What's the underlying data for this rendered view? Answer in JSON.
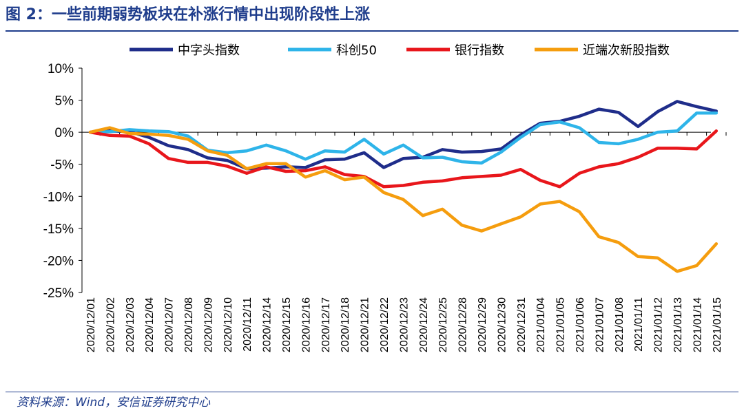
{
  "figure": {
    "title": "图 2：一些前期弱势板块在补涨行情中出现阶段性上涨",
    "source": "资料来源：Wind，安信证券研究中心"
  },
  "chart_data": {
    "type": "line",
    "x": [
      "2020/12/01",
      "2020/12/02",
      "2020/12/03",
      "2020/12/04",
      "2020/12/07",
      "2020/12/08",
      "2020/12/09",
      "2020/12/10",
      "2020/12/11",
      "2020/12/14",
      "2020/12/15",
      "2020/12/16",
      "2020/12/17",
      "2020/12/18",
      "2020/12/21",
      "2020/12/22",
      "2020/12/23",
      "2020/12/24",
      "2020/12/25",
      "2020/12/28",
      "2020/12/29",
      "2020/12/30",
      "2020/12/31",
      "2021/01/04",
      "2021/01/05",
      "2021/01/06",
      "2021/01/07",
      "2021/01/08",
      "2021/01/11",
      "2021/01/12",
      "2021/01/13",
      "2021/01/14",
      "2021/01/15"
    ],
    "yticks": [
      "10%",
      "5%",
      "0%",
      "-5%",
      "-10%",
      "-15%",
      "-20%",
      "-25%"
    ],
    "ylim": [
      -25,
      10
    ],
    "legend_position": "top",
    "grid": false,
    "series": [
      {
        "name": "中字头指数",
        "color": "#1F2D8A",
        "values": [
          0,
          0.2,
          0.1,
          -0.8,
          -2.1,
          -2.7,
          -4.0,
          -4.4,
          -5.7,
          -5.6,
          -5.4,
          -5.5,
          -4.3,
          -4.2,
          -3.2,
          -5.5,
          -4.1,
          -3.9,
          -2.7,
          -3.1,
          -3.0,
          -2.6,
          -0.4,
          1.4,
          1.7,
          2.5,
          3.6,
          3.1,
          0.9,
          3.2,
          4.8,
          4.0,
          3.3
        ]
      },
      {
        "name": "科创50",
        "color": "#2EB4E9",
        "values": [
          0,
          0.1,
          0.4,
          0.2,
          0.1,
          -0.6,
          -2.8,
          -3.2,
          -2.9,
          -2.0,
          -2.9,
          -4.2,
          -2.9,
          -3.1,
          -1.1,
          -3.4,
          -2.0,
          -4.0,
          -3.9,
          -4.6,
          -4.8,
          -3.1,
          -0.8,
          1.2,
          1.6,
          0.7,
          -1.6,
          -1.8,
          -1.1,
          0.0,
          0.2,
          3.0,
          3.0
        ]
      },
      {
        "name": "银行指数",
        "color": "#E8161B",
        "values": [
          0,
          -0.5,
          -0.6,
          -1.8,
          -4.1,
          -4.7,
          -4.7,
          -5.3,
          -6.4,
          -5.4,
          -6.1,
          -6.0,
          -5.4,
          -6.6,
          -6.9,
          -8.5,
          -8.3,
          -7.8,
          -7.6,
          -7.1,
          -6.9,
          -6.7,
          -5.8,
          -7.5,
          -8.5,
          -6.4,
          -5.4,
          -4.9,
          -3.9,
          -2.5,
          -2.5,
          -2.6,
          0.2
        ]
      },
      {
        "name": "近端次新股指数",
        "color": "#F59D0E",
        "values": [
          0,
          0.7,
          -0.2,
          -0.3,
          -0.5,
          -1.1,
          -2.9,
          -3.6,
          -5.7,
          -4.9,
          -4.9,
          -7.0,
          -6.0,
          -7.4,
          -7.0,
          -9.4,
          -10.5,
          -13.0,
          -12.0,
          -14.5,
          -15.4,
          -14.3,
          -13.2,
          -11.2,
          -10.8,
          -12.4,
          -16.3,
          -17.2,
          -19.4,
          -19.6,
          -21.7,
          -20.8,
          -17.4
        ]
      }
    ]
  }
}
